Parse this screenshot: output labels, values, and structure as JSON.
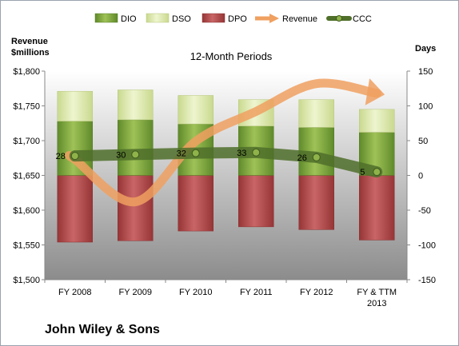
{
  "chart_data": {
    "type": "bar",
    "title": "12-Month Periods",
    "company": "John Wiley & Sons",
    "y_left_label": [
      "Revenue",
      "$millions"
    ],
    "y_right_label": "Days",
    "categories": [
      [
        "FY 2008"
      ],
      [
        "FY 2009"
      ],
      [
        "FY 2010"
      ],
      [
        "FY 2011"
      ],
      [
        "FY 2012"
      ],
      [
        "FY & TTM",
        "2013"
      ]
    ],
    "y_left_ticks": [
      "$1,800",
      "$1,750",
      "$1,700",
      "$1,650",
      "$1,600",
      "$1,550",
      "$1,500"
    ],
    "y_left_range": [
      1500,
      1800
    ],
    "y_right_ticks": [
      "150",
      "100",
      "50",
      "0",
      "-50",
      "-100",
      "-150"
    ],
    "y_right_range": [
      -150,
      150
    ],
    "series": [
      {
        "name": "DIO",
        "kind": "stacked-bar-positive",
        "axis": "right",
        "color": "#7aa33a",
        "values": [
          78,
          80,
          74,
          71,
          69,
          62
        ]
      },
      {
        "name": "DSO",
        "kind": "stacked-bar-positive",
        "axis": "right",
        "color": "#dfeaae",
        "values": [
          43,
          43,
          41,
          38,
          40,
          33
        ]
      },
      {
        "name": "DPO",
        "kind": "stacked-bar-negative",
        "axis": "right",
        "color": "#b24a4b",
        "values": [
          -96,
          -94,
          -80,
          -74,
          -78,
          -93
        ]
      },
      {
        "name": "Revenue",
        "kind": "curved-arrow",
        "axis": "left",
        "color": "#f0a060",
        "values": [
          1673,
          1612,
          1699,
          1742,
          1782,
          1768
        ]
      },
      {
        "name": "CCC",
        "kind": "line-markers",
        "axis": "right",
        "color": "#4f6f2a",
        "values": [
          28,
          30,
          32,
          33,
          26,
          5
        ],
        "labels": [
          "28",
          "30",
          "32",
          "33",
          "26",
          "5"
        ]
      }
    ],
    "legend_position": "top",
    "grid": false
  }
}
